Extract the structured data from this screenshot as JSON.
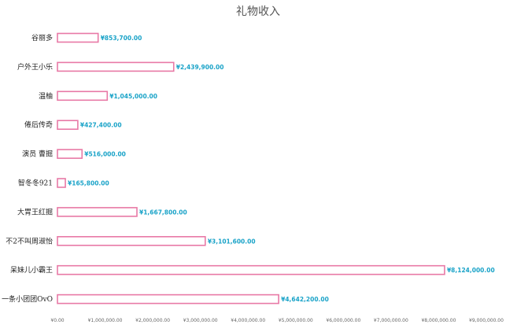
{
  "chart_data": {
    "type": "bar",
    "orientation": "horizontal",
    "title": "礼物收入",
    "categories": [
      "谷丽多",
      "户外王小乐",
      "温柚",
      "倦后传奇",
      "演员 曹掘",
      "智冬冬921",
      "大胃王红掘",
      "不2不叫周淑怡",
      "呆妹儿小霸王",
      "一条小团团OvO"
    ],
    "values": [
      853700,
      2439900,
      1045000,
      427400,
      516000,
      165800,
      1667800,
      3101600,
      8124000,
      4642200
    ],
    "value_labels": [
      "¥853,700.00",
      "¥2,439,900.00",
      "¥1,045,000.00",
      "¥427,400.00",
      "¥516,000.00",
      "¥165,800.00",
      "¥1,667,800.00",
      "¥3,101,600.00",
      "¥8,124,000.00",
      "¥4,642,200.00"
    ],
    "xlim": [
      0,
      9000000
    ],
    "x_ticks": [
      "¥0.00",
      "¥1,000,000.00",
      "¥2,000,000.00",
      "¥3,000,000.00",
      "¥4,000,000.00",
      "¥5,000,000.00",
      "¥6,000,000.00",
      "¥7,000,000.00",
      "¥8,000,000.00",
      "¥9,000,000.00"
    ],
    "grid": false,
    "bar_fill": "#ffffff",
    "bar_stroke": "#e879a6",
    "label_color": "#1aa3c8"
  }
}
